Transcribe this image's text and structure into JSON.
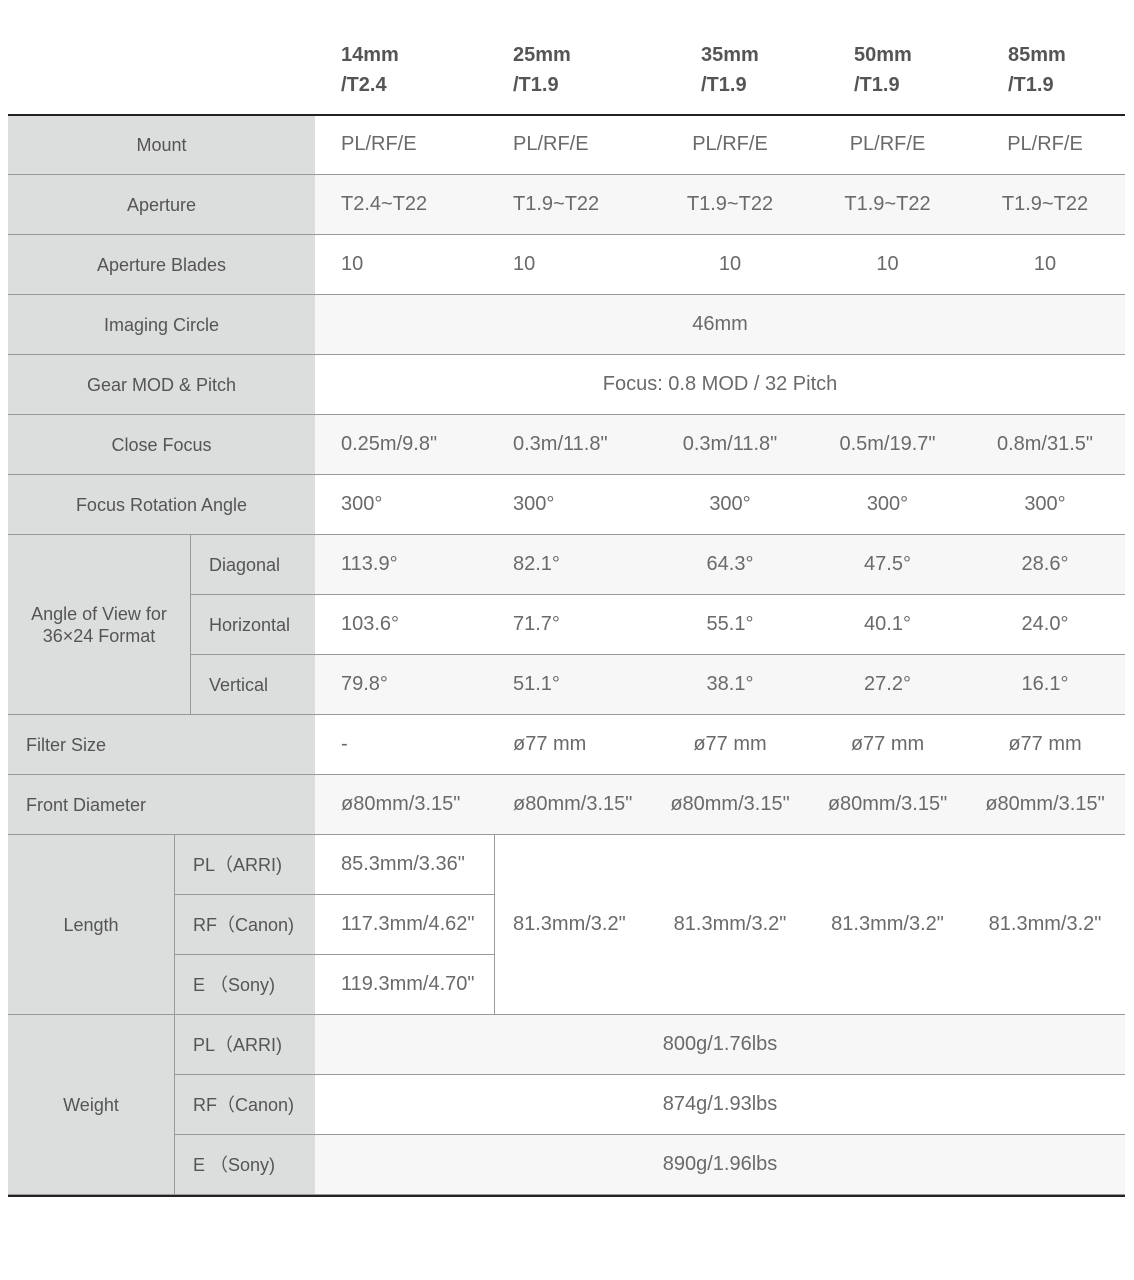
{
  "columns": [
    {
      "focal": "14mm",
      "tstop": "/T2.4"
    },
    {
      "focal": "25mm",
      "tstop": "/T1.9"
    },
    {
      "focal": "35mm",
      "tstop": "/T1.9"
    },
    {
      "focal": "50mm",
      "tstop": "/T1.9"
    },
    {
      "focal": "85mm",
      "tstop": "/T1.9"
    }
  ],
  "rows": {
    "mount": {
      "label": "Mount",
      "values": [
        "PL/RF/E",
        "PL/RF/E",
        "PL/RF/E",
        "PL/RF/E",
        "PL/RF/E"
      ]
    },
    "aperture": {
      "label": "Aperture",
      "values": [
        "T2.4~T22",
        "T1.9~T22",
        "T1.9~T22",
        "T1.9~T22",
        "T1.9~T22"
      ]
    },
    "blades": {
      "label": "Aperture Blades",
      "values": [
        "10",
        "10",
        "10",
        "10",
        "10"
      ]
    },
    "imaging_circle": {
      "label": "Imaging Circle",
      "value": "46mm"
    },
    "gear": {
      "label": "Gear MOD & Pitch",
      "value": "Focus: 0.8 MOD / 32 Pitch"
    },
    "close_focus": {
      "label": "Close Focus",
      "values": [
        "0.25m/9.8\"",
        "0.3m/11.8\"",
        "0.3m/11.8\"",
        "0.5m/19.7\"",
        "0.8m/31.5\""
      ]
    },
    "rotation": {
      "label": "Focus Rotation Angle",
      "values": [
        "300°",
        "300°",
        "300°",
        "300°",
        "300°"
      ]
    },
    "angle_of_view": {
      "label": "Angle of View for\n36×24 Format",
      "sub": [
        {
          "label": "Diagonal",
          "values": [
            "113.9°",
            "82.1°",
            "64.3°",
            "47.5°",
            "28.6°"
          ]
        },
        {
          "label": "Horizontal",
          "values": [
            "103.6°",
            "71.7°",
            "55.1°",
            "40.1°",
            "24.0°"
          ]
        },
        {
          "label": "Vertical",
          "values": [
            "79.8°",
            "51.1°",
            "38.1°",
            "27.2°",
            "16.1°"
          ]
        }
      ]
    },
    "filter": {
      "label": "Filter Size",
      "values": [
        "-",
        "ø77 mm",
        "ø77 mm",
        "ø77 mm",
        "ø77 mm"
      ]
    },
    "front": {
      "label": "Front Diameter",
      "values": [
        "ø80mm/3.15\"",
        "ø80mm/3.15\"",
        "ø80mm/3.15\"",
        "ø80mm/3.15\"",
        "ø80mm/3.15\""
      ]
    },
    "length": {
      "label": "Length",
      "sub": [
        {
          "label": "PL（ARRI)",
          "value": "85.3mm/3.36\""
        },
        {
          "label": "RF（Canon)",
          "value": "117.3mm/4.62\""
        },
        {
          "label": "E （Sony)",
          "value": "119.3mm/4.70\""
        }
      ],
      "others": [
        "81.3mm/3.2\"",
        "81.3mm/3.2\"",
        "81.3mm/3.2\"",
        "81.3mm/3.2\""
      ]
    },
    "weight": {
      "label": "Weight",
      "sub": [
        {
          "label": "PL（ARRI)",
          "value": "800g/1.76lbs"
        },
        {
          "label": "RF（Canon)",
          "value": "874g/1.93lbs"
        },
        {
          "label": "E （Sony)",
          "value": "890g/1.96lbs"
        }
      ]
    }
  }
}
